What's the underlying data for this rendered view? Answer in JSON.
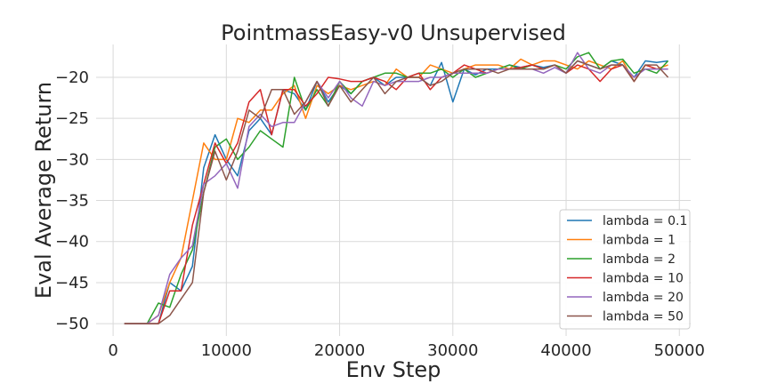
{
  "chart_data": {
    "type": "line",
    "title": "PointmassEasy-v0 Unsupervised",
    "xlabel": "Env Step",
    "ylabel": "Eval Average Return",
    "xlim": [
      -1500,
      51000
    ],
    "ylim": [
      -51.5,
      -16.0
    ],
    "xticks": [
      0,
      10000,
      20000,
      30000,
      40000,
      50000
    ],
    "yticks": [
      -50,
      -45,
      -40,
      -35,
      -30,
      -25,
      -20
    ],
    "grid": true,
    "legend_position": "lower-right",
    "x": [
      1000,
      2000,
      3000,
      4000,
      5000,
      6000,
      7000,
      8000,
      9000,
      10000,
      11000,
      12000,
      13000,
      14000,
      15000,
      16000,
      17000,
      18000,
      19000,
      20000,
      21000,
      22000,
      23000,
      24000,
      25000,
      26000,
      27000,
      28000,
      29000,
      30000,
      31000,
      32000,
      33000,
      34000,
      35000,
      36000,
      37000,
      38000,
      39000,
      40000,
      41000,
      42000,
      43000,
      44000,
      45000,
      46000,
      47000,
      48000,
      49000
    ],
    "series": [
      {
        "name": "lambda = 0.1",
        "color": "#1f77b4",
        "values": [
          -50,
          -50,
          -50,
          -50,
          -45,
          -46,
          -43,
          -31,
          -27,
          -30,
          -32,
          -26.5,
          -25,
          -27,
          -21.5,
          -22,
          -24,
          -20.5,
          -23,
          -21,
          -22,
          -20.5,
          -20,
          -21,
          -20,
          -20,
          -20,
          -21,
          -18.2,
          -23,
          -19,
          -19.7,
          -19,
          -19,
          -18.5,
          -18.8,
          -18.5,
          -18.8,
          -18.5,
          -19.5,
          -18,
          -18.5,
          -19,
          -18,
          -18.5,
          -20,
          -18,
          -18.2,
          -18
        ]
      },
      {
        "name": "lambda = 1",
        "color": "#ff7f0e",
        "values": [
          -50,
          -50,
          -50,
          -49,
          -45,
          -42,
          -35,
          -28,
          -30,
          -30,
          -25,
          -25.5,
          -24,
          -24,
          -22,
          -21,
          -25,
          -21,
          -22,
          -21,
          -21.5,
          -21,
          -20.5,
          -21,
          -19,
          -20,
          -20,
          -18.5,
          -19,
          -19.5,
          -19,
          -18.5,
          -18.5,
          -18.5,
          -19,
          -17.8,
          -18.5,
          -18,
          -18,
          -18.5,
          -19,
          -18,
          -18.5,
          -19,
          -18,
          -20.5,
          -18.5,
          -19,
          -18.5
        ]
      },
      {
        "name": "lambda = 2",
        "color": "#2ca02c",
        "values": [
          -50,
          -50,
          -50,
          -47.5,
          -48,
          -44,
          -41,
          -34,
          -28.5,
          -27.5,
          -30,
          -28.5,
          -26.5,
          -27.5,
          -28.5,
          -20,
          -24,
          -21.5,
          -23.5,
          -20.5,
          -22,
          -20.5,
          -20,
          -19.5,
          -19.5,
          -20,
          -19.5,
          -19.5,
          -19,
          -20,
          -19,
          -20,
          -19.5,
          -19,
          -18.5,
          -19,
          -18.5,
          -19,
          -18.5,
          -19,
          -17.5,
          -17,
          -19,
          -18,
          -17.8,
          -19.5,
          -19,
          -19.5,
          -18
        ]
      },
      {
        "name": "lambda = 10",
        "color": "#d62728",
        "values": [
          -50,
          -50,
          -50,
          -50,
          -46,
          -46,
          -38,
          -33,
          -28,
          -30.5,
          -28,
          -23,
          -21.5,
          -27,
          -21.5,
          -21.5,
          -23.5,
          -22,
          -20,
          -20.2,
          -20.5,
          -20.5,
          -20,
          -20.5,
          -21.5,
          -20,
          -19.5,
          -21.5,
          -20,
          -19.5,
          -18.5,
          -19,
          -19.5,
          -19,
          -19,
          -18.8,
          -18.5,
          -19,
          -18.5,
          -19.5,
          -18.5,
          -19,
          -20.5,
          -19,
          -18.5,
          -20.5,
          -18.5,
          -19,
          -19
        ]
      },
      {
        "name": "lambda = 20",
        "color": "#9467bd",
        "values": [
          -50,
          -50,
          -50,
          -49,
          -44,
          -42,
          -40.5,
          -33,
          -32,
          -30.5,
          -33.5,
          -26,
          -24.5,
          -26,
          -25.5,
          -25.5,
          -23,
          -20.5,
          -22.5,
          -20.5,
          -22.5,
          -23.5,
          -20.5,
          -21,
          -20.5,
          -20.5,
          -20.5,
          -20,
          -20,
          -19.5,
          -19.5,
          -19.5,
          -19.5,
          -19,
          -19,
          -19,
          -19,
          -19.5,
          -18.8,
          -19.5,
          -17,
          -19,
          -19.5,
          -18.5,
          -18.5,
          -20,
          -19,
          -19,
          -19
        ]
      },
      {
        "name": "lambda = 50",
        "color": "#8c564b",
        "values": [
          -50,
          -50,
          -50,
          -50,
          -49,
          -47,
          -45,
          -34,
          -29,
          -32.5,
          -29,
          -24,
          -25,
          -21.5,
          -21.5,
          -24.5,
          -23,
          -20.5,
          -23.5,
          -21,
          -23,
          -21.5,
          -20,
          -22,
          -20.5,
          -20,
          -20,
          -21,
          -20.5,
          -19.5,
          -19,
          -19,
          -19,
          -19.5,
          -19,
          -19,
          -19,
          -19,
          -18.5,
          -19.5,
          -18,
          -18.5,
          -19,
          -18.5,
          -18.5,
          -20.5,
          -18.5,
          -18.5,
          -20
        ]
      }
    ]
  }
}
